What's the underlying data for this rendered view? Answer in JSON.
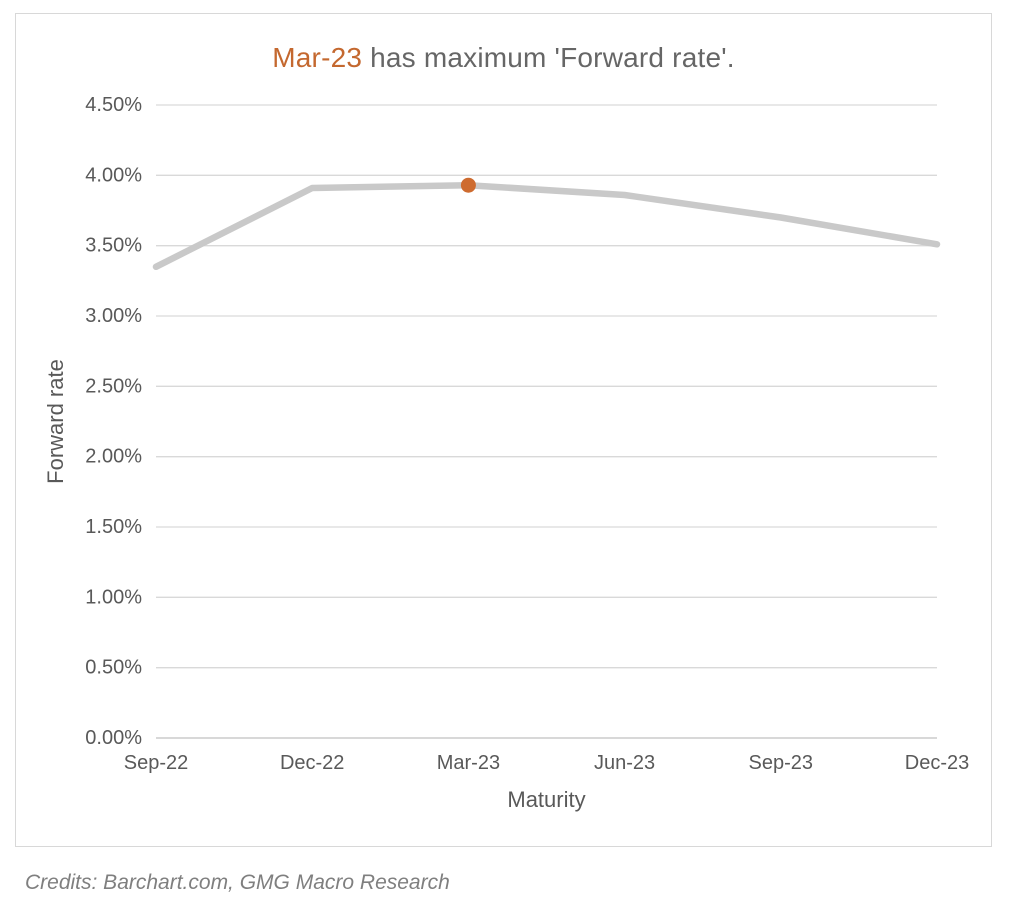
{
  "title": {
    "highlight": "Mar-23",
    "rest": " has maximum 'Forward rate'."
  },
  "credits_text": "Credits: Barchart.com, GMG Macro Research",
  "colors": {
    "title_highlight": "#c4682f",
    "title_text": "#666666",
    "credits_text": "#7f7f7f",
    "border": "#d8d8d8",
    "grid_line": "#d9d9d9",
    "axis_line": "#c1c1c1",
    "tick_text": "#595959",
    "axis_title_text": "#595959",
    "series_line": "#c9c9c9",
    "marker": "#ce6b2f"
  },
  "chart_data": {
    "type": "line",
    "title": "Mar-23 has maximum 'Forward rate'.",
    "categories": [
      "Sep-22",
      "Dec-22",
      "Mar-23",
      "Jun-23",
      "Sep-23",
      "Dec-23"
    ],
    "series": [
      {
        "name": "Forward rate",
        "values": [
          3.35,
          3.91,
          3.93,
          3.86,
          3.7,
          3.51
        ]
      }
    ],
    "highlight_point": {
      "category": "Mar-23",
      "value": 3.93
    },
    "xlabel": "Maturity",
    "ylabel": "Forward rate",
    "ylim": [
      0,
      4.5
    ],
    "ytick_step": 0.5,
    "ytick_labels": [
      "0.00%",
      "0.50%",
      "1.00%",
      "1.50%",
      "2.00%",
      "2.50%",
      "3.00%",
      "3.50%",
      "4.00%",
      "4.50%"
    ],
    "grid": true,
    "legend": false
  }
}
